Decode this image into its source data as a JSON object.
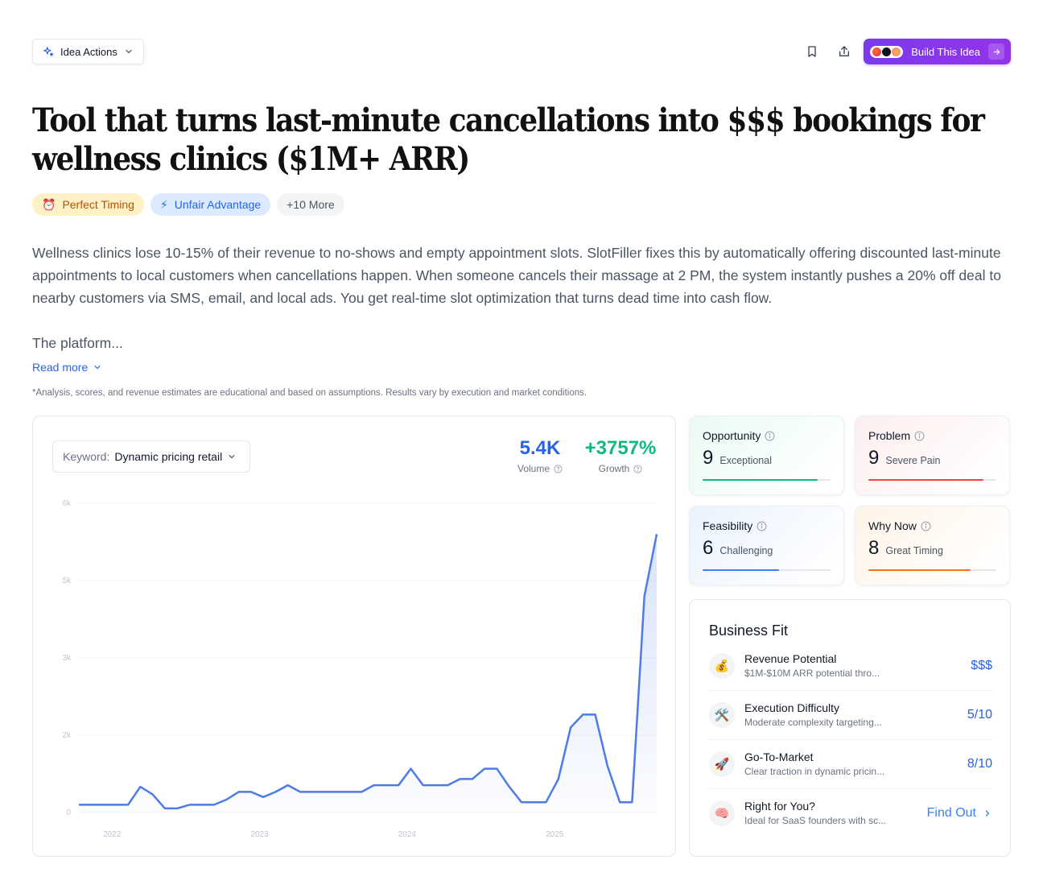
{
  "header": {
    "idea_actions_label": "Idea Actions",
    "build_label": "Build This Idea"
  },
  "title": "Tool that turns last-minute cancellations into $$$ bookings for wellness clinics ($1M+ ARR)",
  "tags": [
    {
      "emoji": "⏰",
      "label": "Perfect Timing"
    },
    {
      "emoji": "⚡",
      "label": "Unfair Advantage"
    },
    {
      "emoji": "",
      "label": "+10 More"
    }
  ],
  "description": "Wellness clinics lose 10-15% of their revenue to no-shows and empty appointment slots. SlotFiller fixes this by automatically offering discounted last-minute appointments to local customers when cancellations happen. When someone cancels their massage at 2 PM, the system instantly pushes a 20% off deal to nearby customers via SMS, email, and local ads. You get real-time slot optimization that turns dead time into cash flow.",
  "description_more": "The platform...",
  "read_more_label": "Read more",
  "disclaimer": "*Analysis, scores, and revenue estimates are educational and based on assumptions. Results vary by execution and market conditions.",
  "keyword": {
    "label": "Keyword:",
    "value": "Dynamic pricing retail"
  },
  "metrics": {
    "volume": {
      "value": "5.4K",
      "label": "Volume"
    },
    "growth": {
      "value": "+3757%",
      "label": "Growth"
    }
  },
  "chart_data": {
    "type": "area",
    "y_tick_labels": [
      "0",
      "2k",
      "3k",
      "5k",
      "6k"
    ],
    "y_ticks": [
      0,
      1500,
      3000,
      4500,
      6000
    ],
    "ylim": [
      0,
      6000
    ],
    "x_tick_labels": [
      "2022",
      "2023",
      "2024",
      "2025"
    ],
    "x_ticks": [
      2.2,
      14.2,
      26.2,
      38.2
    ],
    "xlim": [
      -0.5,
      46.5
    ],
    "grid": true,
    "color": "#4f7be8",
    "series": [
      {
        "values": [
          150,
          150,
          150,
          150,
          150,
          500,
          350,
          80,
          80,
          150,
          150,
          150,
          250,
          400,
          400,
          300,
          400,
          530,
          400,
          400,
          400,
          400,
          400,
          400,
          530,
          530,
          530,
          850,
          530,
          530,
          530,
          650,
          650,
          850,
          850,
          500,
          200,
          200,
          200,
          650,
          1650,
          1900,
          1900,
          900,
          200,
          200,
          4200,
          5400
        ]
      }
    ]
  },
  "scores": [
    {
      "title": "Opportunity",
      "value": "9",
      "word": "Exceptional",
      "fill": 0.9,
      "color": "#10b981",
      "bg": "#e9fbf3"
    },
    {
      "title": "Problem",
      "value": "9",
      "word": "Severe Pain",
      "fill": 0.9,
      "color": "#ef4444",
      "bg": "#fdeeee"
    },
    {
      "title": "Feasibility",
      "value": "6",
      "word": "Challenging",
      "fill": 0.6,
      "color": "#3b82f6",
      "bg": "#eaf2fe"
    },
    {
      "title": "Why Now",
      "value": "8",
      "word": "Great Timing",
      "fill": 0.8,
      "color": "#f97316",
      "bg": "#fff3e6"
    }
  ],
  "business_fit": {
    "title": "Business Fit",
    "rows": [
      {
        "icon": "💰",
        "name": "Revenue Potential",
        "sub": "$1M-$10M ARR potential thro...",
        "value": "$$$"
      },
      {
        "icon": "🛠️",
        "name": "Execution Difficulty",
        "sub": "Moderate complexity targeting...",
        "value": "5/10"
      },
      {
        "icon": "🚀",
        "name": "Go-To-Market",
        "sub": "Clear traction in dynamic pricin...",
        "value": "8/10"
      },
      {
        "icon": "🧠",
        "name": "Right for You?",
        "sub": "Ideal for SaaS founders with sc...",
        "value": "Find Out"
      }
    ]
  }
}
